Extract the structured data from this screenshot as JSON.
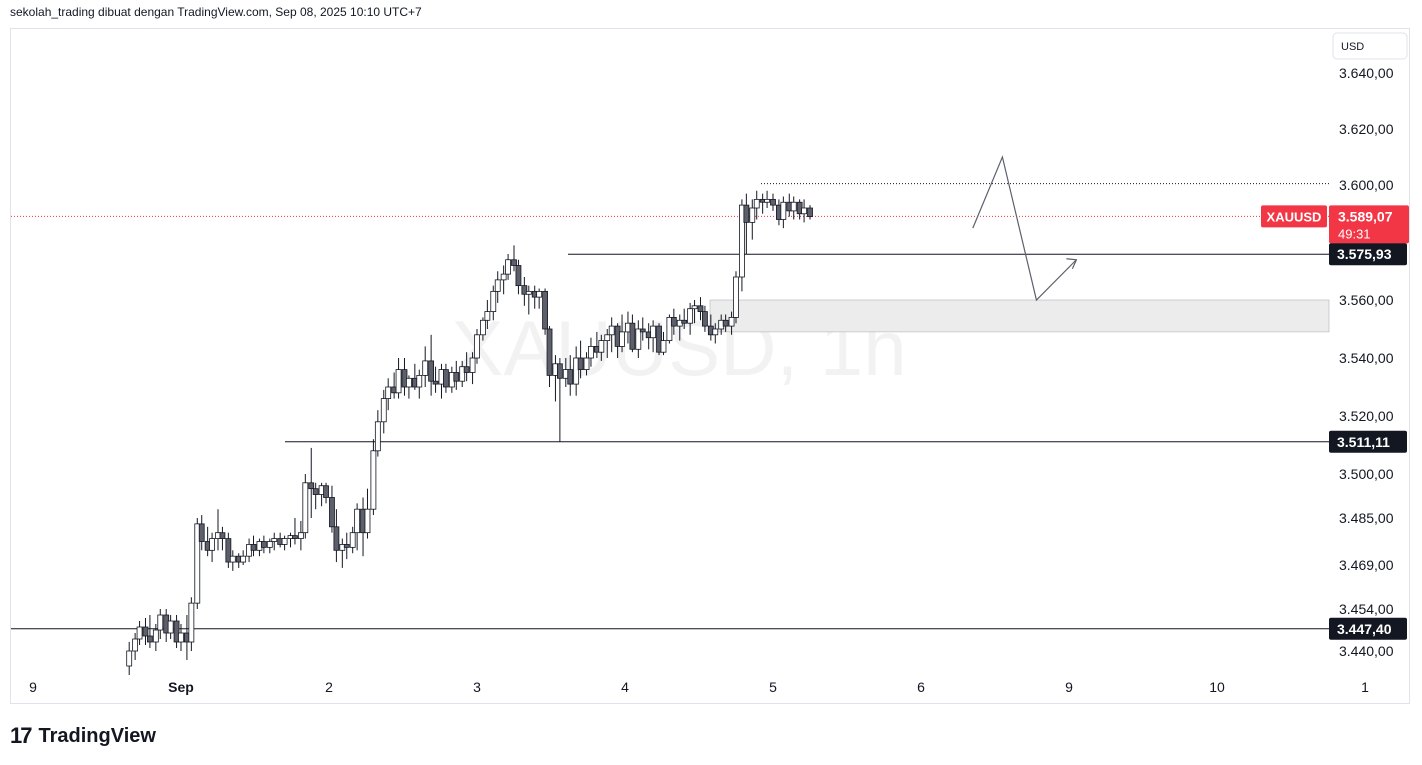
{
  "header": {
    "attribution": "sekolah_trading dibuat dengan TradingView.com, Sep 08, 2025 10:10 UTC+7"
  },
  "footer": {
    "logo_mark": "17",
    "brand": "TradingView"
  },
  "colors": {
    "up_body": "#ffffff",
    "down_body": "#5d606b",
    "wick": "#131722",
    "price_badge": "#f23645",
    "level_badge": "#131722",
    "zone_fill": "#ececec",
    "dotted_line": "#f23645"
  },
  "chart_data": {
    "type": "candlestick",
    "symbol": "XAUUSD",
    "watermark": "XAUUSD, 1h",
    "currency": "USD",
    "x_ticks": [
      "9",
      "Sep",
      "2",
      "3",
      "4",
      "5",
      "6",
      "9",
      "10",
      "1"
    ],
    "y_ticks": [
      "3.640,00",
      "3.620,00",
      "3.600,00",
      "3.560,00",
      "3.540,00",
      "3.520,00",
      "3.500,00",
      "3.485,00",
      "3.469,00",
      "3.454,00",
      "3.440,00"
    ],
    "y_tick_values": [
      3640,
      3620,
      3600,
      3560,
      3540,
      3520,
      3500,
      3485,
      3469,
      3454,
      3440
    ],
    "current_price": {
      "label": "XAUUSD",
      "value": 3589.07,
      "text": "3.589,07",
      "countdown": "49:31"
    },
    "horizontal_levels": [
      {
        "value": 3575.93,
        "text": "3.575,93"
      },
      {
        "value": 3511.11,
        "text": "3.511,11"
      },
      {
        "value": 3447.4,
        "text": "3.447,40"
      }
    ],
    "dotted_level": 3600.5,
    "zone": {
      "low": 3549.0,
      "high": 3560.0
    },
    "projection": {
      "x_days": [
        6.35,
        6.55,
        6.78,
        7.05
      ],
      "y": [
        3585,
        3610,
        3560,
        3574
      ]
    },
    "candles_note": "Hourly OHLC, x in trading-day units (Sep 1 = 1, ... Sep 5 = 5, Sep 8 = 6)",
    "candles": [
      [
        0.65,
        3435,
        3443,
        3432,
        3440
      ],
      [
        0.69,
        3440,
        3446,
        3437,
        3444
      ],
      [
        0.72,
        3444,
        3450,
        3442,
        3448
      ],
      [
        0.76,
        3448,
        3451,
        3442,
        3445
      ],
      [
        0.79,
        3445,
        3452,
        3441,
        3443
      ],
      [
        0.83,
        3443,
        3449,
        3440,
        3447
      ],
      [
        0.86,
        3447,
        3454,
        3444,
        3452
      ],
      [
        0.9,
        3452,
        3454,
        3443,
        3446
      ],
      [
        0.93,
        3446,
        3452,
        3444,
        3450
      ],
      [
        0.97,
        3450,
        3452,
        3441,
        3443
      ],
      [
        1.0,
        3443,
        3449,
        3440,
        3446
      ],
      [
        1.04,
        3446,
        3452,
        3437,
        3443
      ],
      [
        1.07,
        3443,
        3458,
        3440,
        3456
      ],
      [
        1.11,
        3456,
        3485,
        3454,
        3483
      ],
      [
        1.14,
        3483,
        3486,
        3474,
        3477
      ],
      [
        1.18,
        3477,
        3482,
        3472,
        3474
      ],
      [
        1.21,
        3474,
        3480,
        3470,
        3478
      ],
      [
        1.25,
        3478,
        3488,
        3474,
        3480
      ],
      [
        1.28,
        3480,
        3482,
        3474,
        3478
      ],
      [
        1.32,
        3478,
        3480,
        3468,
        3470
      ],
      [
        1.35,
        3470,
        3474,
        3467,
        3472
      ],
      [
        1.39,
        3472,
        3473,
        3468,
        3470
      ],
      [
        1.42,
        3470,
        3474,
        3469,
        3472
      ],
      [
        1.46,
        3472,
        3478,
        3470,
        3476
      ],
      [
        1.49,
        3476,
        3479,
        3472,
        3474
      ],
      [
        1.53,
        3474,
        3478,
        3472,
        3477
      ],
      [
        1.56,
        3477,
        3479,
        3473,
        3475
      ],
      [
        1.6,
        3475,
        3478,
        3473,
        3477
      ],
      [
        1.63,
        3477,
        3480,
        3474,
        3478
      ],
      [
        1.67,
        3478,
        3480,
        3475,
        3476
      ],
      [
        1.7,
        3476,
        3479,
        3474,
        3478
      ],
      [
        1.74,
        3478,
        3480,
        3475,
        3479
      ],
      [
        1.77,
        3479,
        3485,
        3476,
        3478
      ],
      [
        1.81,
        3478,
        3484,
        3474,
        3480
      ],
      [
        1.84,
        3480,
        3500,
        3478,
        3497
      ],
      [
        1.88,
        3497,
        3509,
        3485,
        3495
      ],
      [
        1.91,
        3495,
        3497,
        3488,
        3493
      ],
      [
        1.95,
        3493,
        3497,
        3489,
        3496
      ],
      [
        1.98,
        3496,
        3497,
        3490,
        3492
      ],
      [
        2.02,
        3492,
        3496,
        3480,
        3482
      ],
      [
        2.05,
        3482,
        3488,
        3470,
        3474
      ],
      [
        2.09,
        3474,
        3478,
        3468,
        3476
      ],
      [
        2.12,
        3476,
        3480,
        3471,
        3475
      ],
      [
        2.16,
        3475,
        3482,
        3473,
        3480
      ],
      [
        2.19,
        3480,
        3490,
        3474,
        3488
      ],
      [
        2.23,
        3488,
        3492,
        3472,
        3480
      ],
      [
        2.26,
        3480,
        3495,
        3478,
        3488
      ],
      [
        2.3,
        3488,
        3512,
        3486,
        3508
      ],
      [
        2.33,
        3508,
        3522,
        3506,
        3518
      ],
      [
        2.37,
        3518,
        3529,
        3514,
        3526
      ],
      [
        2.4,
        3526,
        3533,
        3522,
        3530
      ],
      [
        2.44,
        3530,
        3535,
        3526,
        3528
      ],
      [
        2.47,
        3528,
        3540,
        3526,
        3536
      ],
      [
        2.51,
        3536,
        3540,
        3527,
        3530
      ],
      [
        2.54,
        3530,
        3534,
        3526,
        3533
      ],
      [
        2.58,
        3533,
        3538,
        3529,
        3530
      ],
      [
        2.61,
        3530,
        3536,
        3526,
        3534
      ],
      [
        2.65,
        3534,
        3544,
        3530,
        3539
      ],
      [
        2.69,
        3539,
        3548,
        3527,
        3532
      ],
      [
        2.72,
        3532,
        3537,
        3528,
        3531
      ],
      [
        2.76,
        3531,
        3538,
        3526,
        3536
      ],
      [
        2.79,
        3536,
        3538,
        3528,
        3530
      ],
      [
        2.83,
        3530,
        3537,
        3528,
        3535
      ],
      [
        2.86,
        3535,
        3539,
        3529,
        3532
      ],
      [
        2.9,
        3532,
        3539,
        3530,
        3537
      ],
      [
        2.93,
        3537,
        3542,
        3532,
        3535
      ],
      [
        2.97,
        3535,
        3542,
        3531,
        3540
      ],
      [
        3.0,
        3540,
        3550,
        3538,
        3548
      ],
      [
        3.04,
        3548,
        3554,
        3546,
        3553
      ],
      [
        3.07,
        3553,
        3560,
        3550,
        3556
      ],
      [
        3.11,
        3556,
        3565,
        3553,
        3563
      ],
      [
        3.14,
        3563,
        3570,
        3559,
        3567
      ],
      [
        3.18,
        3567,
        3572,
        3562,
        3569
      ],
      [
        3.21,
        3569,
        3576,
        3567,
        3574
      ],
      [
        3.25,
        3574,
        3579,
        3570,
        3572
      ],
      [
        3.28,
        3572,
        3574,
        3562,
        3565
      ],
      [
        3.32,
        3565,
        3568,
        3558,
        3562
      ],
      [
        3.35,
        3562,
        3565,
        3555,
        3563
      ],
      [
        3.39,
        3563,
        3565,
        3557,
        3561
      ],
      [
        3.42,
        3561,
        3564,
        3557,
        3563
      ],
      [
        3.46,
        3563,
        3564,
        3548,
        3550
      ],
      [
        3.49,
        3550,
        3551,
        3530,
        3534
      ],
      [
        3.53,
        3534,
        3541,
        3525,
        3538
      ],
      [
        3.56,
        3538,
        3540,
        3511,
        3533
      ],
      [
        3.6,
        3533,
        3540,
        3530,
        3536
      ],
      [
        3.63,
        3536,
        3541,
        3527,
        3531
      ],
      [
        3.67,
        3531,
        3544,
        3527,
        3540
      ],
      [
        3.7,
        3540,
        3546,
        3533,
        3536
      ],
      [
        3.74,
        3536,
        3542,
        3534,
        3540
      ],
      [
        3.77,
        3540,
        3547,
        3537,
        3544
      ],
      [
        3.81,
        3544,
        3549,
        3540,
        3542
      ],
      [
        3.84,
        3542,
        3548,
        3539,
        3546
      ],
      [
        3.88,
        3546,
        3550,
        3540,
        3548
      ],
      [
        3.91,
        3548,
        3554,
        3542,
        3551
      ],
      [
        3.95,
        3551,
        3552,
        3540,
        3544
      ],
      [
        3.98,
        3544,
        3555,
        3542,
        3549
      ],
      [
        4.02,
        3549,
        3556,
        3545,
        3552
      ],
      [
        4.05,
        3552,
        3555,
        3542,
        3543
      ],
      [
        4.09,
        3543,
        3553,
        3540,
        3550
      ],
      [
        4.12,
        3550,
        3554,
        3546,
        3549
      ],
      [
        4.16,
        3549,
        3552,
        3543,
        3547
      ],
      [
        4.19,
        3547,
        3553,
        3542,
        3551
      ],
      [
        4.23,
        3551,
        3552,
        3541,
        3542
      ],
      [
        4.26,
        3542,
        3549,
        3541,
        3546
      ],
      [
        4.3,
        3546,
        3555,
        3545,
        3554
      ],
      [
        4.33,
        3554,
        3557,
        3548,
        3551
      ],
      [
        4.37,
        3551,
        3555,
        3546,
        3553
      ],
      [
        4.4,
        3553,
        3557,
        3550,
        3552
      ],
      [
        4.44,
        3552,
        3559,
        3548,
        3557
      ],
      [
        4.47,
        3557,
        3560,
        3552,
        3558
      ],
      [
        4.51,
        3558,
        3561,
        3553,
        3556
      ],
      [
        4.54,
        3556,
        3558,
        3549,
        3551
      ],
      [
        4.58,
        3551,
        3555,
        3546,
        3548
      ],
      [
        4.61,
        3548,
        3552,
        3545,
        3550
      ],
      [
        4.65,
        3550,
        3555,
        3548,
        3553
      ],
      [
        4.68,
        3553,
        3555,
        3549,
        3551
      ],
      [
        4.72,
        3551,
        3556,
        3548,
        3554
      ],
      [
        4.75,
        3554,
        3570,
        3552,
        3568
      ],
      [
        4.79,
        3568,
        3595,
        3563,
        3593
      ],
      [
        4.82,
        3593,
        3597,
        3576,
        3587
      ],
      [
        4.86,
        3587,
        3595,
        3581,
        3592
      ],
      [
        4.89,
        3592,
        3598,
        3588,
        3595
      ],
      [
        4.93,
        3595,
        3597,
        3590,
        3594
      ],
      [
        4.96,
        3594,
        3598,
        3592,
        3595
      ],
      [
        5.0,
        3595,
        3597,
        3591,
        3593
      ],
      [
        5.04,
        3593,
        3595,
        3586,
        3588
      ],
      [
        5.07,
        3588,
        3596,
        3585,
        3594
      ],
      [
        5.11,
        3594,
        3597,
        3589,
        3591
      ],
      [
        5.14,
        3591,
        3596,
        3588,
        3594
      ],
      [
        5.18,
        3594,
        3595,
        3588,
        3590
      ],
      [
        5.21,
        3590,
        3595,
        3587,
        3592
      ],
      [
        5.25,
        3592,
        3593,
        3588,
        3589
      ]
    ]
  }
}
